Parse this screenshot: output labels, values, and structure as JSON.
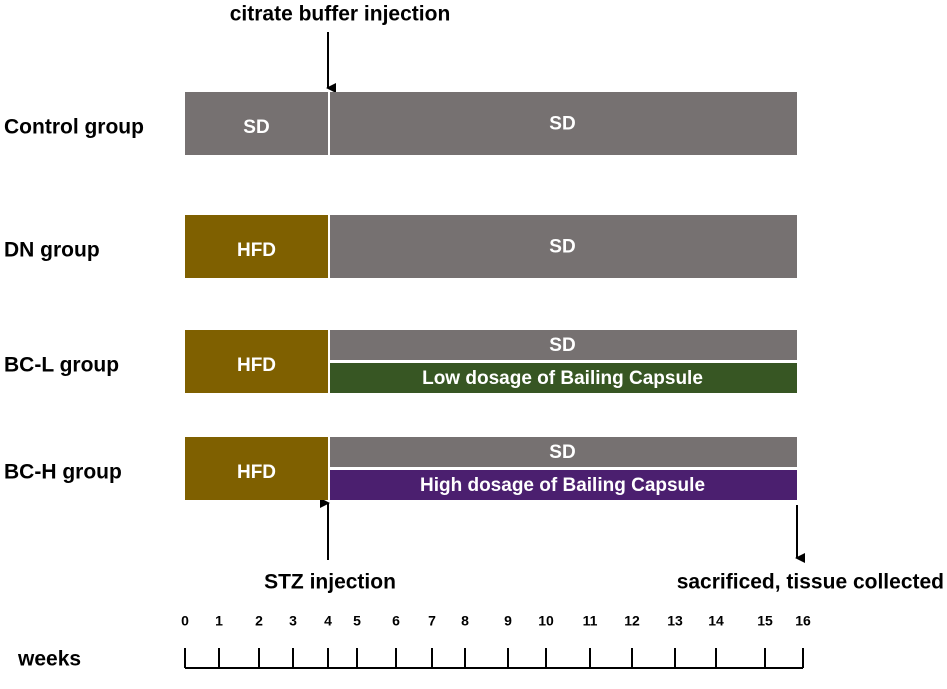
{
  "annotations": {
    "citrate": "citrate buffer injection",
    "stz": "STZ injection",
    "sacrificed": "sacrificed, tissue collected"
  },
  "groups": [
    {
      "label": "Control group",
      "early": "SD",
      "late": [
        "SD"
      ]
    },
    {
      "label": "DN group",
      "early": "HFD",
      "late": [
        "SD"
      ]
    },
    {
      "label": "BC-L group",
      "early": "HFD",
      "late": [
        "SD",
        "Low dosage of Bailing Capsule"
      ]
    },
    {
      "label": "BC-H group",
      "early": "HFD",
      "late": [
        "SD",
        "High dosage of Bailing Capsule"
      ]
    }
  ],
  "axis": {
    "label": "weeks",
    "ticks": [
      0,
      1,
      2,
      3,
      4,
      5,
      6,
      7,
      8,
      9,
      10,
      11,
      12,
      13,
      14,
      15,
      16
    ]
  }
}
